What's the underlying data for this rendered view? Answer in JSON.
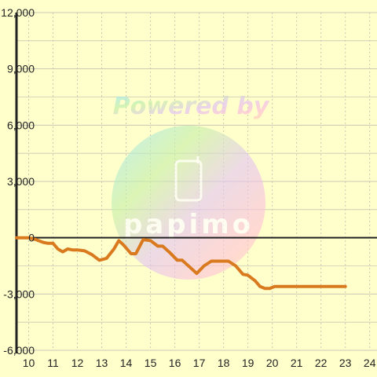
{
  "colors": {
    "background": "#ffffcc",
    "grid": "#c8c8b4",
    "axis": "#222222",
    "line": "#d97a1f"
  },
  "watermark": {
    "top_text": "Powered by",
    "brand_text": "papimo"
  },
  "chart_data": {
    "type": "line",
    "title": "",
    "xlabel": "",
    "ylabel": "",
    "xlim": [
      9.5,
      24.3
    ],
    "ylim": [
      -6000,
      12000
    ],
    "grid": true,
    "x_ticks": [
      10,
      11,
      12,
      13,
      14,
      15,
      16,
      17,
      18,
      19,
      20,
      21,
      22,
      23,
      24
    ],
    "y_ticks": [
      12000,
      9000,
      6000,
      3000,
      0,
      -3000,
      -6000
    ],
    "y_tick_labels": [
      "12,000",
      "9,000",
      "6,000",
      "3,000",
      "0",
      "-3,000",
      "-6,000"
    ],
    "x_tick_labels": [
      "10",
      "11",
      "12",
      "13",
      "14",
      "15",
      "16",
      "17",
      "18",
      "19",
      "20",
      "21",
      "22",
      "23",
      "24"
    ],
    "series": [
      {
        "x": [
          9.5,
          10.0,
          10.3,
          10.6,
          10.8,
          11.0,
          11.2,
          11.4,
          11.6,
          11.8,
          12.0,
          12.3,
          12.6,
          12.9,
          13.2,
          13.5,
          13.7,
          13.9,
          14.2,
          14.4,
          14.7,
          15.0,
          15.3,
          15.5,
          15.8,
          16.1,
          16.3,
          16.6,
          16.9,
          17.2,
          17.5,
          17.9,
          18.2,
          18.5,
          18.8,
          19.0,
          19.3,
          19.5,
          19.7,
          19.9,
          20.1,
          20.3,
          20.6,
          21.0,
          21.5,
          22.0,
          22.5,
          23.0
        ],
        "y": [
          0,
          0,
          -100,
          -250,
          -300,
          -300,
          -600,
          -750,
          -600,
          -650,
          -650,
          -700,
          -900,
          -1200,
          -1100,
          -600,
          -150,
          -400,
          -850,
          -850,
          -100,
          -150,
          -450,
          -450,
          -800,
          -1200,
          -1200,
          -1550,
          -1900,
          -1500,
          -1250,
          -1250,
          -1250,
          -1500,
          -1950,
          -2000,
          -2300,
          -2600,
          -2700,
          -2700,
          -2600,
          -2600,
          -2600,
          -2600,
          -2600,
          -2600,
          -2600,
          -2600
        ]
      }
    ]
  }
}
